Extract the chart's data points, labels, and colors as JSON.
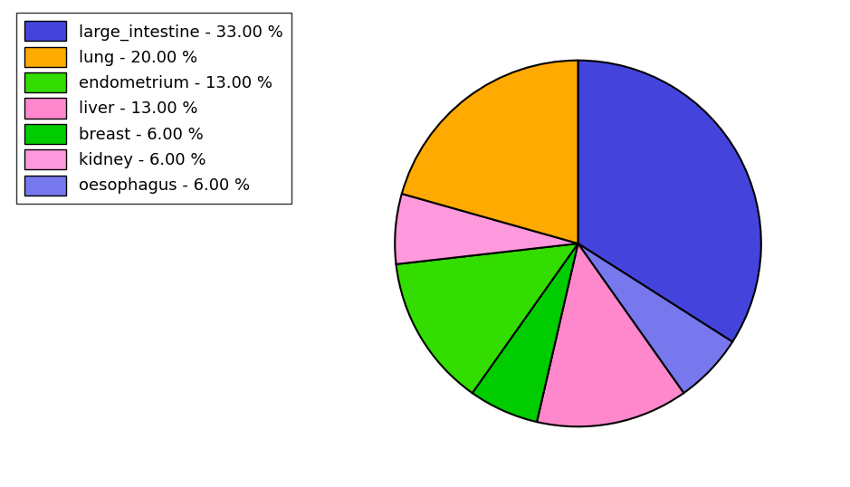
{
  "labels": [
    "large_intestine",
    "oesophagus",
    "liver",
    "breast",
    "endometrium",
    "kidney",
    "lung"
  ],
  "values": [
    33,
    6,
    13,
    6,
    13,
    6,
    20
  ],
  "colors": [
    "#4444dd",
    "#7777ee",
    "#ff88cc",
    "#00cc00",
    "#33dd00",
    "#ff99dd",
    "#ffaa00"
  ],
  "legend_order_labels": [
    "large_intestine - 33.00 %",
    "lung - 20.00 %",
    "endometrium - 13.00 %",
    "liver - 13.00 %",
    "breast - 6.00 %",
    "kidney - 6.00 %",
    "oesophagus - 6.00 %"
  ],
  "legend_order_colors": [
    "#4444dd",
    "#ffaa00",
    "#33dd00",
    "#ff88cc",
    "#00cc00",
    "#ff99dd",
    "#7777ee"
  ],
  "startangle": 90,
  "counterclock": false,
  "figsize": [
    9.39,
    5.38
  ],
  "dpi": 100
}
